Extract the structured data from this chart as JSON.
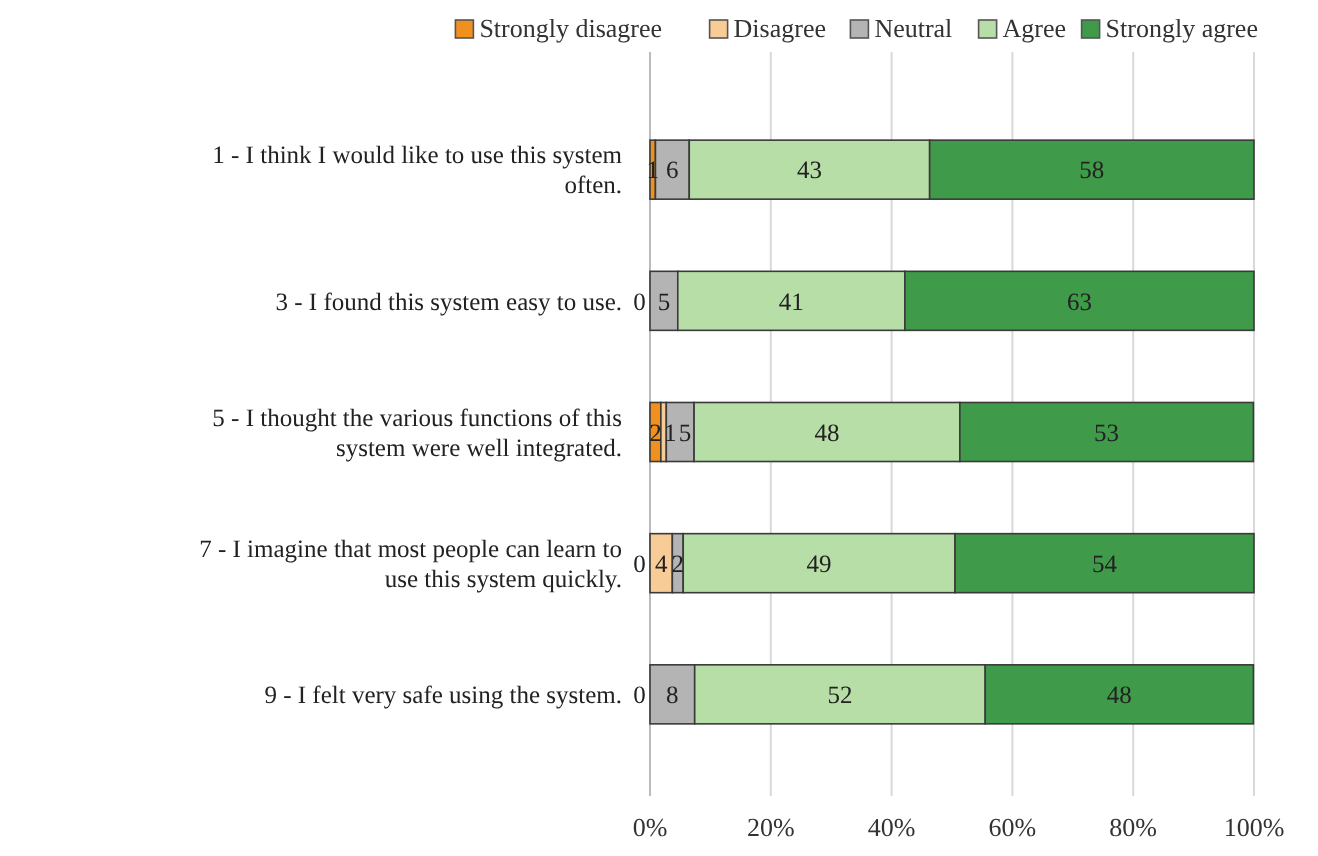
{
  "chart_data": {
    "type": "bar",
    "orientation": "horizontal",
    "stacked": true,
    "categories": [
      "1 - I think I would like to use this system often.",
      "3 - I found this system easy to use.",
      "5 - I thought the various functions of this system were well integrated.",
      "7 - I imagine that most people can learn to use this system quickly.",
      "9 - I felt very safe using the system."
    ],
    "series": [
      {
        "name": "Strongly disagree",
        "color": "#f0901e",
        "values": [
          0.9,
          0,
          1.8,
          0,
          0
        ]
      },
      {
        "name": "Disagree",
        "color": "#f8cc96",
        "values": [
          0,
          0,
          0.9,
          3.7,
          0
        ]
      },
      {
        "name": "Neutral",
        "color": "#b4b4b4",
        "values": [
          5.6,
          4.6,
          4.6,
          1.8,
          7.4
        ]
      },
      {
        "name": "Agree",
        "color": "#b7dea6",
        "values": [
          39.8,
          37.6,
          44.0,
          45.0,
          48.1
        ]
      },
      {
        "name": "Strongly agree",
        "color": "#3f9a4a",
        "values": [
          53.7,
          57.8,
          48.6,
          49.5,
          44.4
        ]
      }
    ],
    "annotations": [
      "1",
      "6",
      "43",
      "58",
      "0",
      "5",
      "41",
      "63",
      "2",
      "1",
      "5",
      "48",
      "53",
      "0",
      "4",
      "2",
      "49",
      "54",
      "0",
      "8",
      "52",
      "48"
    ],
    "xlim": [
      0,
      100
    ],
    "xticks": [
      {
        "value": 0,
        "label": "0%"
      },
      {
        "value": 20,
        "label": "20%"
      },
      {
        "value": 40,
        "label": "40%"
      },
      {
        "value": 60,
        "label": "60%"
      },
      {
        "value": 80,
        "label": "80%"
      },
      {
        "value": 100,
        "label": "100%"
      }
    ],
    "grid": "x",
    "legend": "top"
  }
}
